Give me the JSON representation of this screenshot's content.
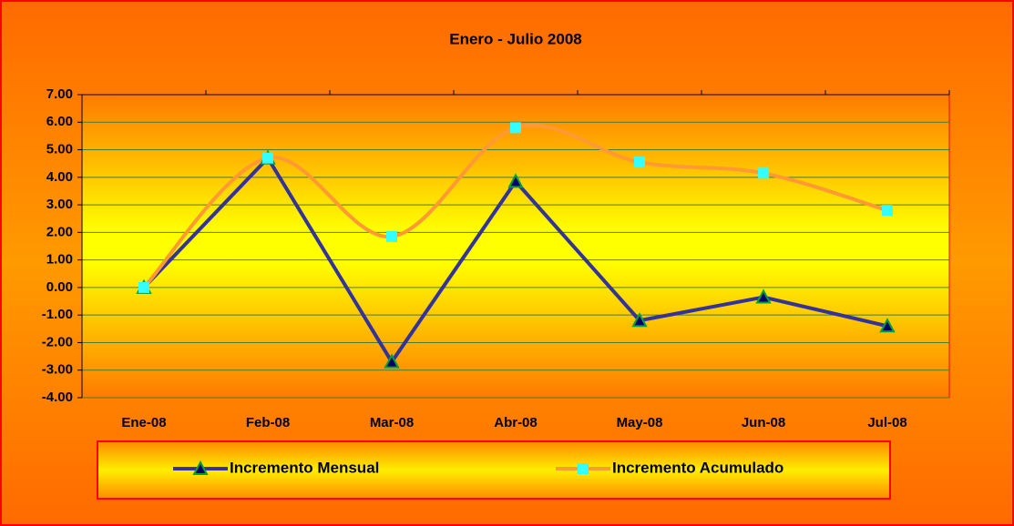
{
  "chart_data": {
    "type": "line",
    "title": "Enero - Julio 2008",
    "categories": [
      "Ene-08",
      "Feb-08",
      "Mar-08",
      "Abr-08",
      "May-08",
      "Jun-08",
      "Jul-08"
    ],
    "series": [
      {
        "name": "Incremento Mensual",
        "color": "#333399",
        "marker": "triangle",
        "marker_color": "#00a040",
        "smooth": false,
        "values": [
          0,
          4.7,
          -2.7,
          3.85,
          -1.2,
          -0.35,
          -1.4
        ]
      },
      {
        "name": "Incremento Acumulado",
        "color": "#ff9933",
        "marker": "square",
        "marker_color": "#33ffff",
        "smooth": true,
        "values": [
          0,
          4.7,
          1.85,
          5.8,
          4.55,
          4.15,
          2.8
        ]
      }
    ],
    "ylim": [
      -4,
      7
    ],
    "yticks": [
      {
        "value": -4,
        "label": "-4.00"
      },
      {
        "value": -3,
        "label": "-3.00"
      },
      {
        "value": -2,
        "label": "-2.00"
      },
      {
        "value": -1,
        "label": "-1.00"
      },
      {
        "value": 0,
        "label": "0.00"
      },
      {
        "value": 1,
        "label": "1.00"
      },
      {
        "value": 2,
        "label": "2.00"
      },
      {
        "value": 3,
        "label": "3.00"
      },
      {
        "value": 4,
        "label": "4.00"
      },
      {
        "value": 5,
        "label": "5.00"
      },
      {
        "value": 6,
        "label": "6.00"
      },
      {
        "value": 7,
        "label": "7.00"
      }
    ],
    "grid": true,
    "grid_color": "#4a7a3a",
    "legend": "bottom"
  }
}
